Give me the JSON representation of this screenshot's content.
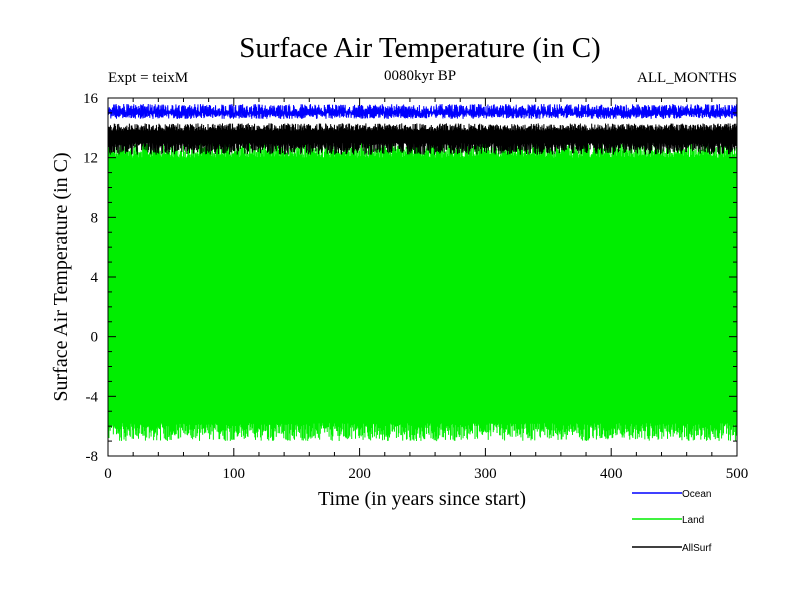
{
  "chart_data": {
    "type": "line",
    "title": "Surface Air Temperature (in C)",
    "subtitle_left": "Expt = teixM",
    "subtitle_center": "0080kyr BP",
    "subtitle_right": "ALL_MONTHS",
    "xlabel": "Time (in years since start)",
    "ylabel": "Surface Air Temperature (in C)",
    "xlim": [
      0,
      500
    ],
    "ylim": [
      -8,
      16
    ],
    "x_ticks": [
      0,
      100,
      200,
      300,
      400,
      500
    ],
    "y_ticks": [
      -8,
      -4,
      0,
      4,
      8,
      12,
      16
    ],
    "grid": false,
    "legend_position": "bottom-right",
    "series": [
      {
        "name": "Ocean",
        "color": "#0000ff",
        "min_range": [
          14.6,
          15.0
        ],
        "max_range": [
          15.0,
          15.6
        ]
      },
      {
        "name": "Land",
        "color": "#00ee00",
        "min_range": [
          -7.0,
          -5.8
        ],
        "max_range": [
          12.0,
          13.0
        ]
      },
      {
        "name": "AllSurf",
        "color": "#000000",
        "min_range": [
          12.2,
          13.0
        ],
        "max_range": [
          13.8,
          14.3
        ]
      }
    ]
  }
}
